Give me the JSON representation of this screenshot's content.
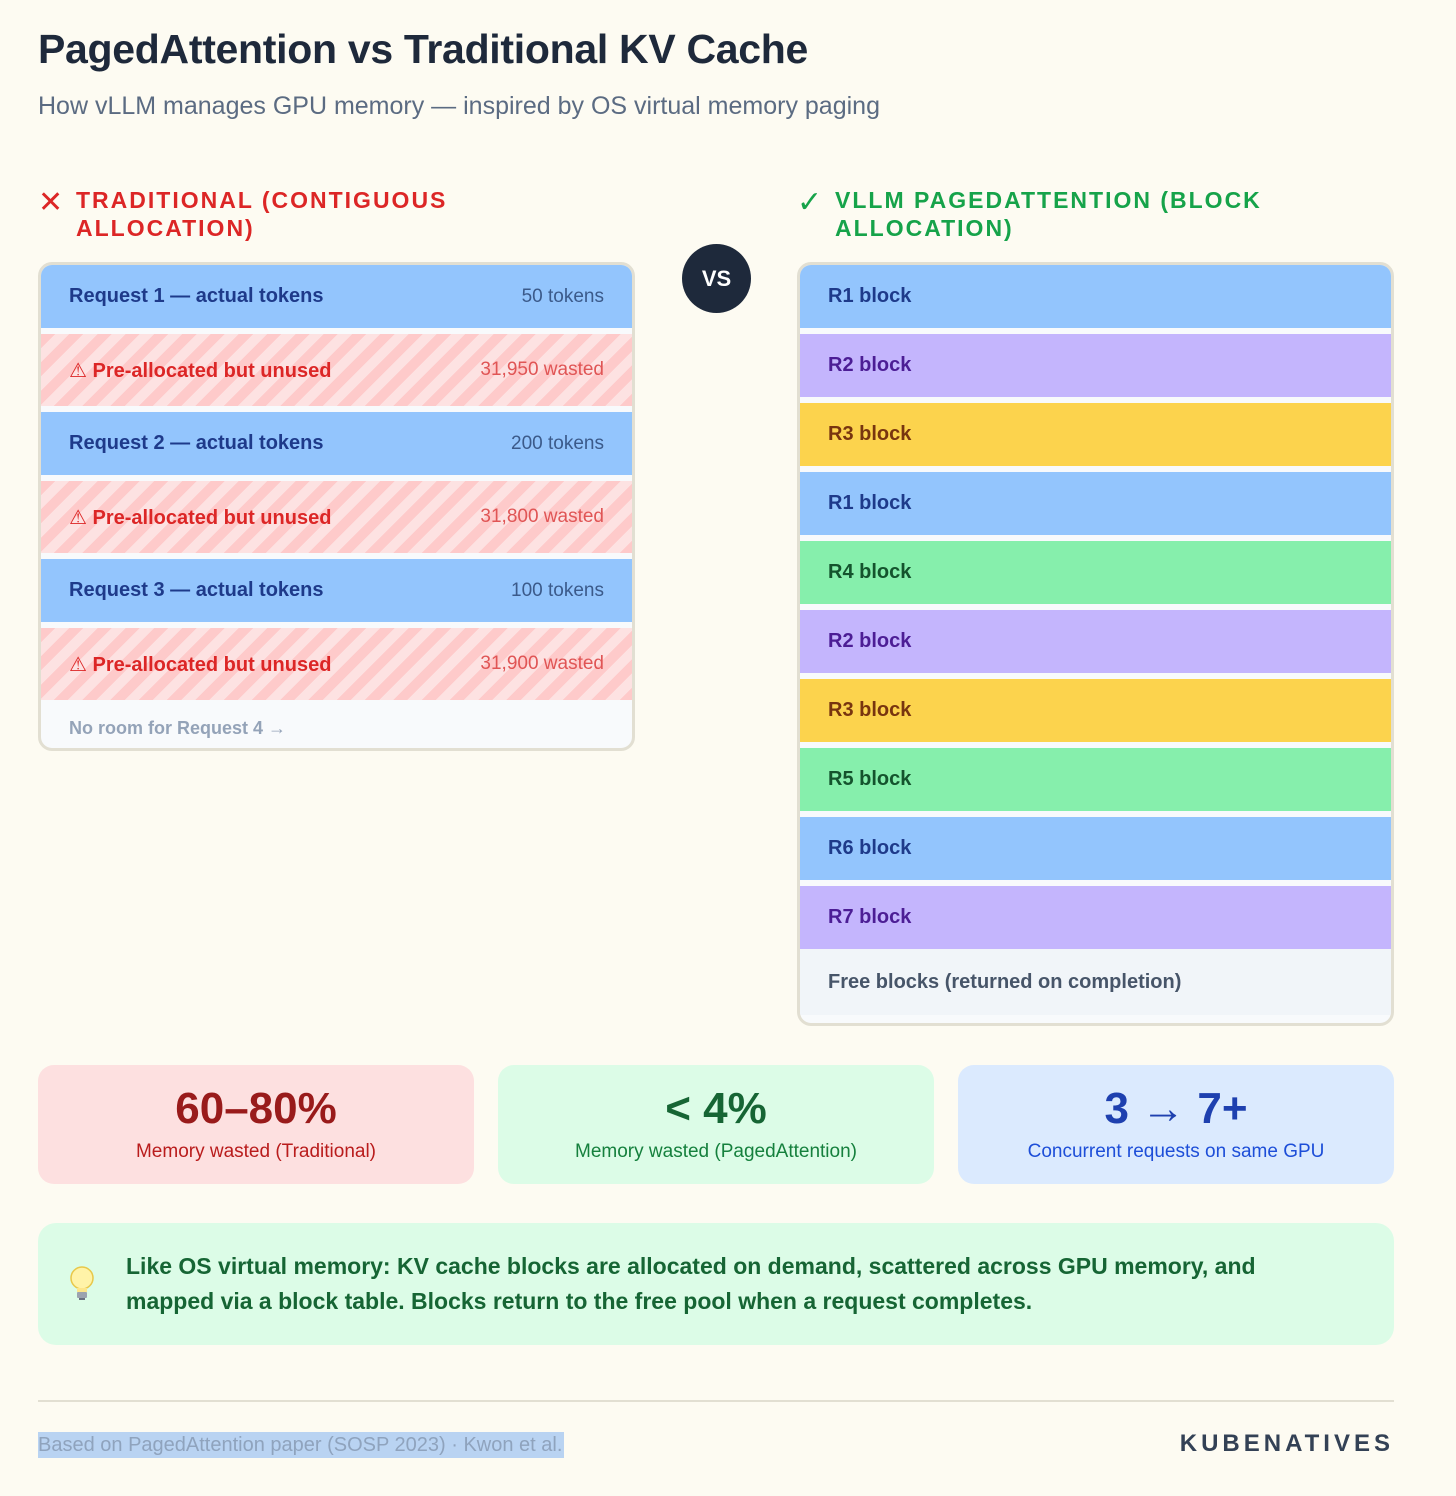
{
  "title": "PagedAttention vs Traditional KV Cache",
  "subtitle": "How vLLM manages GPU memory — inspired by OS virtual memory paging",
  "left": {
    "mark": "✕",
    "heading": "TRADITIONAL (CONTIGUOUS ALLOCATION)",
    "rows": [
      {
        "label": "Request 1 — actual tokens",
        "meta": "50 tokens"
      },
      {
        "label": "⚠ Pre-allocated but unused",
        "meta": "31,950 wasted"
      },
      {
        "label": "Request 2 — actual tokens",
        "meta": "200 tokens"
      },
      {
        "label": "⚠ Pre-allocated but unused",
        "meta": "31,800 wasted"
      },
      {
        "label": "Request 3 — actual tokens",
        "meta": "100 tokens"
      },
      {
        "label": "⚠ Pre-allocated but unused",
        "meta": "31,900 wasted"
      }
    ],
    "footer": "No room for Request 4 →"
  },
  "vs": "VS",
  "right": {
    "mark": "✓",
    "heading": "VLLM PAGEDATTENTION (BLOCK ALLOCATION)",
    "blocks": [
      "R1 block",
      "R2 block",
      "R3 block",
      "R1 block",
      "R4 block",
      "R2 block",
      "R3 block",
      "R5 block",
      "R6 block",
      "R7 block"
    ],
    "footer": "Free blocks (returned on completion)"
  },
  "stats": [
    {
      "value": "60–80%",
      "caption": "Memory wasted (Traditional)"
    },
    {
      "value": "< 4%",
      "caption": "Memory wasted (PagedAttention)"
    },
    {
      "value": "3 → 7+",
      "caption": "Concurrent requests on same GPU"
    }
  ],
  "note": "Like OS virtual memory: KV cache blocks are allocated on demand, scattered across GPU memory, and mapped via a block table. Blocks return to the free pool when a request completes.",
  "footer": {
    "source": "Based on PagedAttention paper (SOSP 2023) · Kwon et al.",
    "brand": "KUBENATIVES"
  },
  "colors": {
    "traditional_accent": "#dc2626",
    "paged_accent": "#16a34a",
    "request_blue": "#93c5fd",
    "block_purple": "#c4b5fd",
    "block_yellow": "#fcd34d",
    "block_green": "#86efac"
  }
}
